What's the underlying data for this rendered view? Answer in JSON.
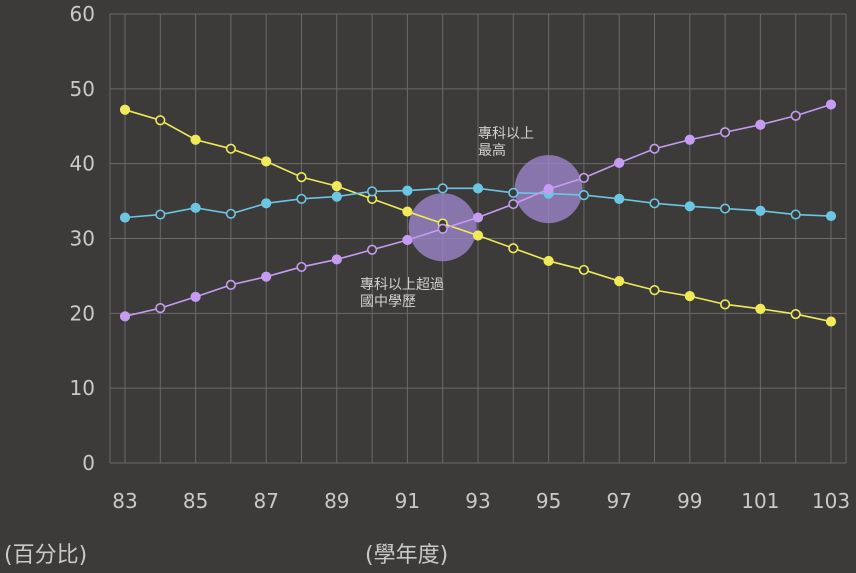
{
  "chart_data": {
    "type": "line",
    "title": "",
    "xlabel": "(學年度)",
    "ylabel": "(百分比)",
    "ylim": [
      0,
      60
    ],
    "xlim": [
      83,
      103
    ],
    "yticks": [
      "0",
      "10",
      "20",
      "30",
      "40",
      "50",
      "60"
    ],
    "xticks": [
      "83",
      "85",
      "87",
      "89",
      "91",
      "93",
      "95",
      "97",
      "99",
      "101",
      "103"
    ],
    "grid": true,
    "legend": "none",
    "x": [
      83,
      84,
      85,
      86,
      87,
      88,
      89,
      90,
      91,
      92,
      93,
      94,
      95,
      96,
      97,
      98,
      99,
      100,
      101,
      102,
      103
    ],
    "series": [
      {
        "color": "#f0ea5a",
        "values": [
          47.2,
          45.8,
          43.2,
          42.0,
          40.3,
          38.2,
          37.0,
          35.3,
          33.6,
          32.0,
          30.4,
          28.7,
          27.0,
          25.8,
          24.3,
          23.1,
          22.3,
          21.2,
          20.6,
          19.9,
          18.9
        ]
      },
      {
        "color": "#6cc5e3",
        "values": [
          32.8,
          33.2,
          34.1,
          33.3,
          34.7,
          35.3,
          35.6,
          36.3,
          36.4,
          36.7,
          36.7,
          36.1,
          36.0,
          35.8,
          35.3,
          34.7,
          34.3,
          34.0,
          33.7,
          33.2,
          33.0
        ]
      },
      {
        "color": "#c59cf2",
        "values": [
          19.6,
          20.7,
          22.2,
          23.8,
          24.9,
          26.2,
          27.2,
          28.5,
          29.8,
          31.3,
          32.8,
          34.6,
          36.6,
          38.1,
          40.1,
          42.0,
          43.2,
          44.2,
          45.2,
          46.4,
          47.9
        ]
      }
    ],
    "highlights": [
      {
        "x": 92,
        "y": 31.5,
        "color": "#9b84c9",
        "text_lines": [
          "專科以上超過",
          "國中學歷"
        ]
      },
      {
        "x": 95,
        "y": 36.6,
        "color": "#9b84c9",
        "text_lines": [
          "專科以上",
          "最高"
        ]
      }
    ]
  }
}
